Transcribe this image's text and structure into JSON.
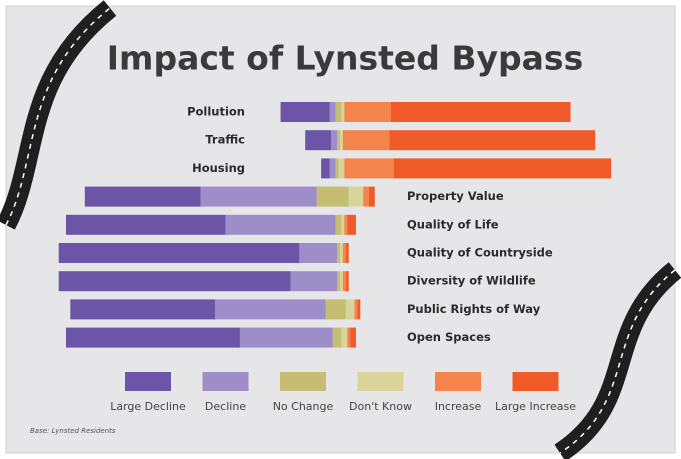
{
  "chart_data": {
    "type": "bar",
    "title": "Impact of Lynsted Bypass",
    "categories": [
      "Pollution",
      "Traffic",
      "Housing",
      "Property Value",
      "Quality of Life",
      "Quality of Countryside",
      "Diversity of Wildlife",
      "Public Rights of Way",
      "Open Spaces"
    ],
    "series": [
      {
        "name": "Large Decline",
        "color": "#6b55a6",
        "values": [
          17,
          9,
          3,
          40,
          55,
          83,
          80,
          50,
          60
        ]
      },
      {
        "name": "Decline",
        "color": "#9d8ec9",
        "values": [
          2,
          2,
          2,
          40,
          38,
          13,
          16,
          38,
          32
        ]
      },
      {
        "name": "No Change",
        "color": "#c4bd72",
        "values": [
          2,
          1,
          1,
          11,
          2,
          1,
          1,
          7,
          3
        ]
      },
      {
        "name": "Don't Know",
        "color": "#d8d49a",
        "values": [
          1,
          1,
          2,
          5,
          1,
          1,
          1,
          3,
          2
        ]
      },
      {
        "name": "Increase",
        "color": "#f5844c",
        "values": [
          16,
          16,
          17,
          2,
          1,
          1,
          1,
          1,
          1
        ]
      },
      {
        "name": "Large Increase",
        "color": "#f05a28",
        "values": [
          62,
          71,
          75,
          2,
          3,
          1,
          1,
          1,
          2
        ]
      }
    ],
    "source": "Base: Lynsted Residents"
  }
}
